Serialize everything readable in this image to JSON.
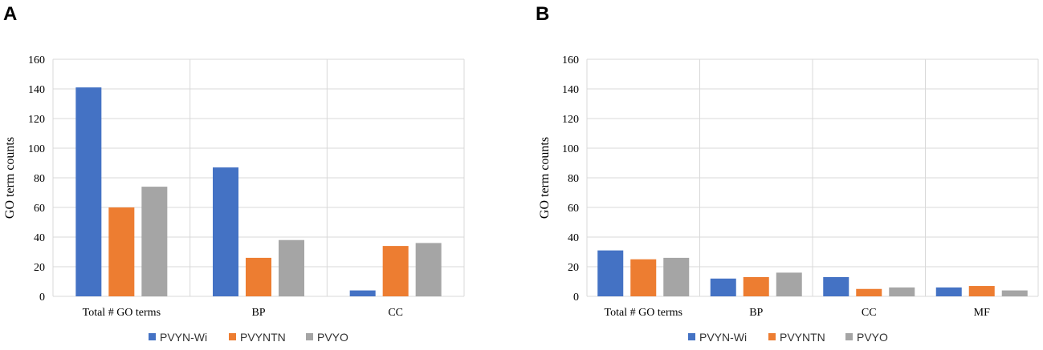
{
  "colors": {
    "PVYN-Wi": "#4472c4",
    "PVYNTN": "#ed7d31",
    "PVYO": "#a5a5a5"
  },
  "chart_data": [
    {
      "panel": "A",
      "type": "bar",
      "title": "",
      "ylabel": "GO term counts",
      "xlabel": "",
      "ylim": [
        0,
        160
      ],
      "yticks": [
        0,
        20,
        40,
        60,
        80,
        100,
        120,
        140,
        160
      ],
      "categories": [
        "Total # GO terms",
        "BP",
        "CC"
      ],
      "series": [
        {
          "name": "PVYN-Wi",
          "values": [
            141,
            87,
            4
          ]
        },
        {
          "name": "PVYNTN",
          "values": [
            60,
            26,
            34
          ]
        },
        {
          "name": "PVYO",
          "values": [
            74,
            38,
            36
          ]
        }
      ],
      "grid": true,
      "legend": "bottom"
    },
    {
      "panel": "B",
      "type": "bar",
      "title": "",
      "ylabel": "GO term counts",
      "xlabel": "",
      "ylim": [
        0,
        160
      ],
      "yticks": [
        0,
        20,
        40,
        60,
        80,
        100,
        120,
        140,
        160
      ],
      "categories": [
        "Total # GO terms",
        "BP",
        "CC",
        "MF"
      ],
      "series": [
        {
          "name": "PVYN-Wi",
          "values": [
            31,
            12,
            13,
            6
          ]
        },
        {
          "name": "PVYNTN",
          "values": [
            25,
            13,
            5,
            7
          ]
        },
        {
          "name": "PVYO",
          "values": [
            26,
            16,
            6,
            4
          ]
        }
      ],
      "grid": true,
      "legend": "bottom"
    }
  ]
}
